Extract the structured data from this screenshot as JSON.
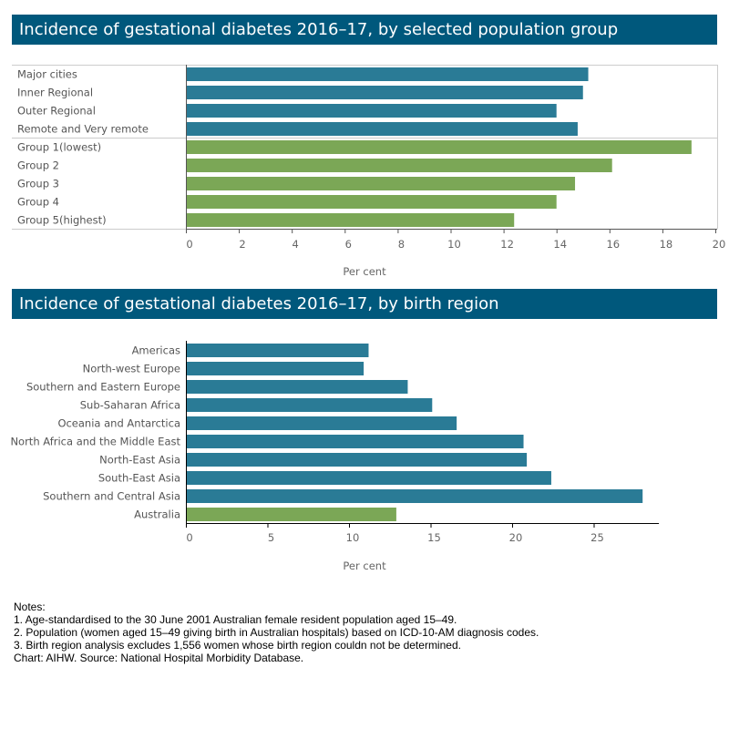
{
  "colors": {
    "title_bg": "#00587c",
    "teal": "#2a7b96",
    "green": "#7ba756"
  },
  "chart_data": [
    {
      "type": "bar",
      "orientation": "horizontal",
      "title": "Incidence of gestational diabetes 2016–17, by selected population group",
      "xlabel": "Per cent",
      "xlim": [
        0,
        20
      ],
      "xticks": [
        0,
        2,
        4,
        6,
        8,
        10,
        12,
        14,
        16,
        18,
        20
      ],
      "grid": false,
      "groups": [
        {
          "color": "#2a7b96",
          "categories": [
            "Major cities",
            "Inner Regional",
            "Outer Regional",
            "Remote and Very remote"
          ],
          "values": [
            15.2,
            15.0,
            14.0,
            14.8
          ]
        },
        {
          "color": "#7ba756",
          "categories": [
            "Group 1(lowest)",
            "Group 2",
            "Group 3",
            "Group 4",
            "Group 5(highest)"
          ],
          "values": [
            19.1,
            16.1,
            14.7,
            14.0,
            12.4
          ]
        }
      ]
    },
    {
      "type": "bar",
      "orientation": "horizontal",
      "title": "Incidence of gestational diabetes 2016–17, by birth region",
      "xlabel": "Per cent",
      "xlim": [
        0,
        29
      ],
      "xticks": [
        0,
        5,
        10,
        15,
        20,
        25
      ],
      "grid": false,
      "categories": [
        "Americas",
        "North-west Europe",
        "Southern and Eastern Europe",
        "Sub-Saharan Africa",
        "Oceania and Antarctica",
        "North Africa and the Middle East",
        "North-East Asia",
        "South-East Asia",
        "Southern and Central Asia",
        "Australia"
      ],
      "values": [
        11.2,
        10.9,
        13.6,
        15.1,
        16.6,
        20.7,
        20.9,
        22.4,
        28.0,
        12.9
      ],
      "bar_colors": [
        "#2a7b96",
        "#2a7b96",
        "#2a7b96",
        "#2a7b96",
        "#2a7b96",
        "#2a7b96",
        "#2a7b96",
        "#2a7b96",
        "#2a7b96",
        "#7ba756"
      ]
    }
  ],
  "notes": {
    "heading": "Notes:",
    "lines": [
      "1. Age-standardised to the 30 June 2001 Australian female resident population aged 15–49.",
      "2. Population (women aged 15–49 giving birth in Australian hospitals) based on ICD-10-AM diagnosis codes.",
      "3. Birth region analysis excludes 1,556 women whose birth region couldn not be determined."
    ],
    "source": "Chart: AIHW. Source: National Hospital Morbidity Database."
  }
}
